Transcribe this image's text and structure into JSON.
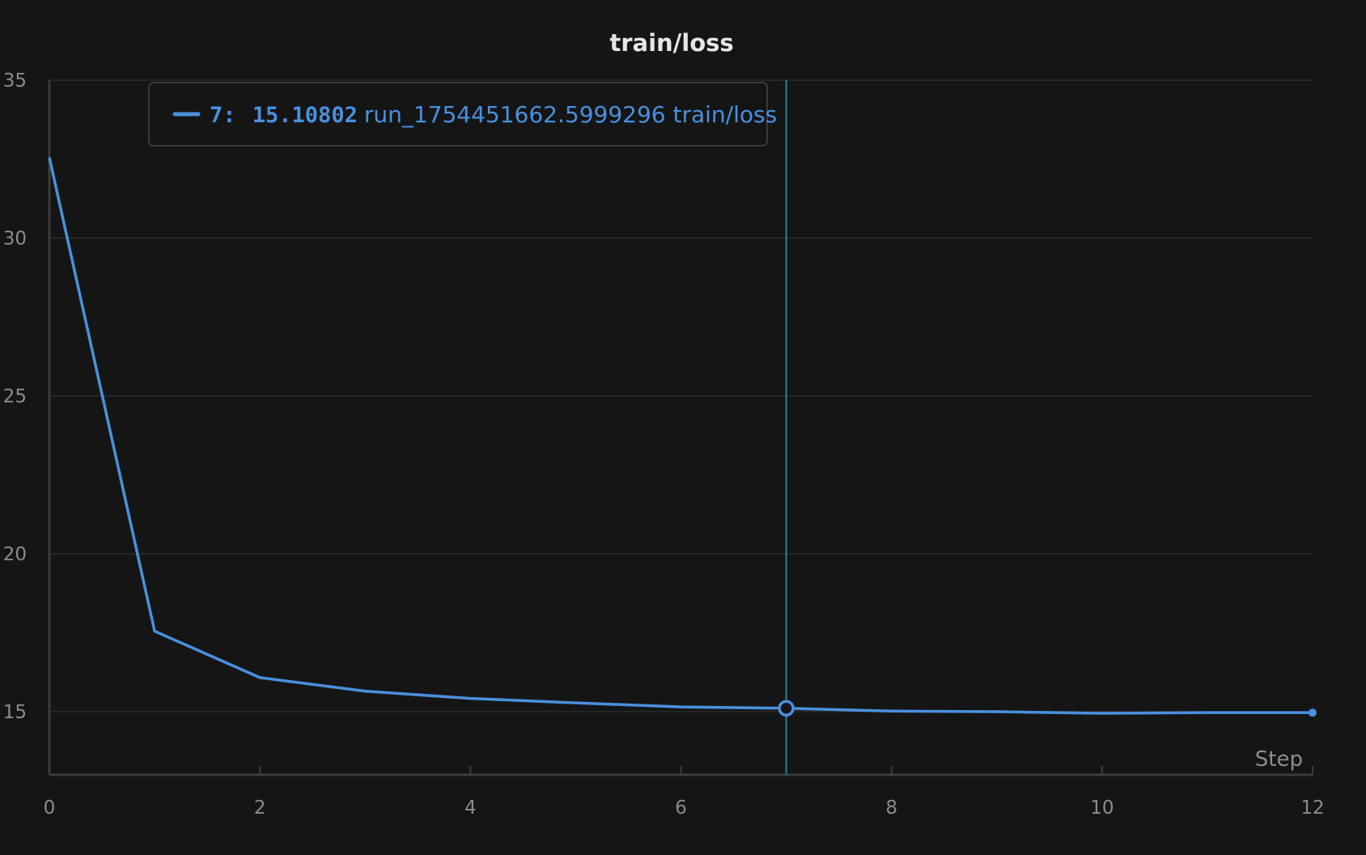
{
  "chart_data": {
    "type": "line",
    "title": "train/loss",
    "xlabel": "Step",
    "ylabel": "",
    "xlim": [
      0,
      12
    ],
    "ylim": [
      13,
      35
    ],
    "xticks": [
      0,
      2,
      4,
      6,
      8,
      10,
      12
    ],
    "yticks": [
      15,
      20,
      25,
      30,
      35
    ],
    "grid": true,
    "series": [
      {
        "name": "run_1754451662.5999296 train/loss",
        "color": "#4a90dd",
        "x": [
          0,
          1,
          2,
          3,
          4,
          5,
          6,
          7,
          8,
          9,
          10,
          11,
          12
        ],
        "y": [
          32.55,
          17.55,
          16.08,
          15.65,
          15.42,
          15.28,
          15.15,
          15.108,
          15.02,
          15.0,
          14.95,
          14.97,
          14.97
        ]
      }
    ],
    "hover": {
      "step_label": "7",
      "value_label": "15.10802",
      "x": 7,
      "y": 15.10802,
      "line_color": "#1b8a8f"
    }
  }
}
